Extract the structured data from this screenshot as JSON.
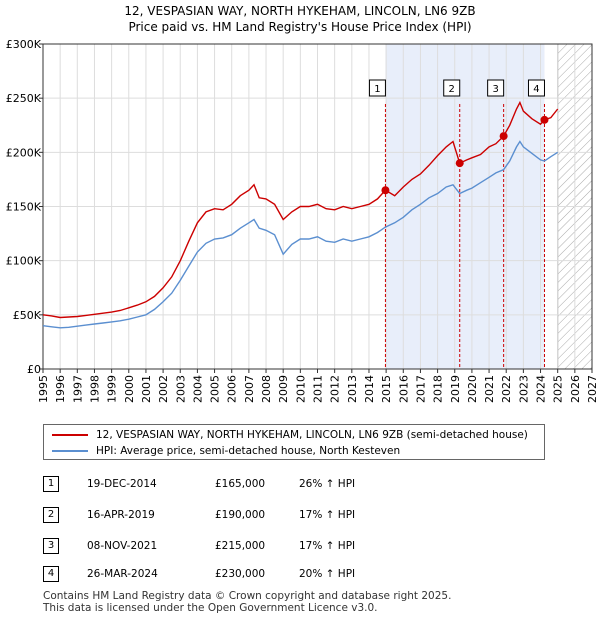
{
  "header": {
    "title_line1": "12, VESPASIAN WAY, NORTH HYKEHAM, LINCOLN, LN6 9ZB",
    "title_line2": "Price paid vs. HM Land Registry's House Price Index (HPI)"
  },
  "colors": {
    "property": "#cc0000",
    "hpi": "#5b8fd0",
    "sale_band": "#e8eefa",
    "grid": "#dddddd",
    "hatch": "#aaaaaa"
  },
  "chart_data": {
    "type": "line",
    "title": "12, VESPASIAN WAY, NORTH HYKEHAM, LINCOLN, LN6 9ZB — Price paid vs. HM Land Registry's House Price Index (HPI)",
    "xlim": [
      1995,
      2027
    ],
    "ylim": [
      0,
      300000
    ],
    "x_ticks": [
      "1995",
      "1996",
      "1997",
      "1998",
      "1999",
      "2000",
      "2001",
      "2002",
      "2003",
      "2004",
      "2005",
      "2006",
      "2007",
      "2008",
      "2009",
      "2010",
      "2011",
      "2012",
      "2013",
      "2014",
      "2015",
      "2016",
      "2017",
      "2018",
      "2019",
      "2020",
      "2021",
      "2022",
      "2023",
      "2024",
      "2025",
      "2026",
      "2027"
    ],
    "y_ticks": [
      {
        "value": 0,
        "label": "£0"
      },
      {
        "value": 50000,
        "label": "£50K"
      },
      {
        "value": 100000,
        "label": "£100K"
      },
      {
        "value": 150000,
        "label": "£150K"
      },
      {
        "value": 200000,
        "label": "£200K"
      },
      {
        "value": 250000,
        "label": "£250K"
      },
      {
        "value": 300000,
        "label": "£300K"
      }
    ],
    "grid": true,
    "forecast_from": 2025.0,
    "sale_band": [
      2014.96,
      2024.23
    ],
    "series": [
      {
        "name": "12, VESPASIAN WAY, NORTH HYKEHAM, LINCOLN, LN6 9ZB (semi-detached house)",
        "color": "#cc0000",
        "points": [
          [
            1995.0,
            50000
          ],
          [
            1995.5,
            49000
          ],
          [
            1996.0,
            47500
          ],
          [
            1996.5,
            48000
          ],
          [
            1997.0,
            48500
          ],
          [
            1997.5,
            49500
          ],
          [
            1998.0,
            50500
          ],
          [
            1998.5,
            51500
          ],
          [
            1999.0,
            52500
          ],
          [
            1999.5,
            54000
          ],
          [
            2000.0,
            56500
          ],
          [
            2000.5,
            59000
          ],
          [
            2001.0,
            62000
          ],
          [
            2001.5,
            67000
          ],
          [
            2002.0,
            75000
          ],
          [
            2002.5,
            85000
          ],
          [
            2003.0,
            100000
          ],
          [
            2003.5,
            118000
          ],
          [
            2004.0,
            135000
          ],
          [
            2004.5,
            145000
          ],
          [
            2005.0,
            148000
          ],
          [
            2005.5,
            147000
          ],
          [
            2006.0,
            152000
          ],
          [
            2006.5,
            160000
          ],
          [
            2007.0,
            165000
          ],
          [
            2007.3,
            170000
          ],
          [
            2007.6,
            158000
          ],
          [
            2008.0,
            157000
          ],
          [
            2008.5,
            152000
          ],
          [
            2009.0,
            138000
          ],
          [
            2009.5,
            145000
          ],
          [
            2010.0,
            150000
          ],
          [
            2010.5,
            150000
          ],
          [
            2011.0,
            152000
          ],
          [
            2011.5,
            148000
          ],
          [
            2012.0,
            147000
          ],
          [
            2012.5,
            150000
          ],
          [
            2013.0,
            148000
          ],
          [
            2013.5,
            150000
          ],
          [
            2014.0,
            152000
          ],
          [
            2014.5,
            157000
          ],
          [
            2014.96,
            165000
          ],
          [
            2015.5,
            160000
          ],
          [
            2016.0,
            168000
          ],
          [
            2016.5,
            175000
          ],
          [
            2017.0,
            180000
          ],
          [
            2017.5,
            188000
          ],
          [
            2018.0,
            197000
          ],
          [
            2018.5,
            205000
          ],
          [
            2018.9,
            210000
          ],
          [
            2019.29,
            190000
          ],
          [
            2019.7,
            193000
          ],
          [
            2020.0,
            195000
          ],
          [
            2020.5,
            198000
          ],
          [
            2021.0,
            205000
          ],
          [
            2021.4,
            208000
          ],
          [
            2021.85,
            215000
          ],
          [
            2022.2,
            225000
          ],
          [
            2022.6,
            240000
          ],
          [
            2022.8,
            246000
          ],
          [
            2023.0,
            238000
          ],
          [
            2023.5,
            231000
          ],
          [
            2024.0,
            226000
          ],
          [
            2024.23,
            230000
          ],
          [
            2024.6,
            232000
          ],
          [
            2025.0,
            240000
          ]
        ]
      },
      {
        "name": "HPI: Average price, semi-detached house, North Kesteven",
        "color": "#5b8fd0",
        "points": [
          [
            1995.0,
            40000
          ],
          [
            1995.5,
            39000
          ],
          [
            1996.0,
            38000
          ],
          [
            1996.5,
            38500
          ],
          [
            1997.0,
            39500
          ],
          [
            1997.5,
            40500
          ],
          [
            1998.0,
            41500
          ],
          [
            1998.5,
            42500
          ],
          [
            1999.0,
            43500
          ],
          [
            1999.5,
            44500
          ],
          [
            2000.0,
            46000
          ],
          [
            2000.5,
            48000
          ],
          [
            2001.0,
            50000
          ],
          [
            2001.5,
            55000
          ],
          [
            2002.0,
            62000
          ],
          [
            2002.5,
            70000
          ],
          [
            2003.0,
            82000
          ],
          [
            2003.5,
            95000
          ],
          [
            2004.0,
            108000
          ],
          [
            2004.5,
            116000
          ],
          [
            2005.0,
            120000
          ],
          [
            2005.5,
            121000
          ],
          [
            2006.0,
            124000
          ],
          [
            2006.5,
            130000
          ],
          [
            2007.0,
            135000
          ],
          [
            2007.3,
            138000
          ],
          [
            2007.6,
            130000
          ],
          [
            2008.0,
            128000
          ],
          [
            2008.5,
            124000
          ],
          [
            2009.0,
            106000
          ],
          [
            2009.5,
            115000
          ],
          [
            2010.0,
            120000
          ],
          [
            2010.5,
            120000
          ],
          [
            2011.0,
            122000
          ],
          [
            2011.5,
            118000
          ],
          [
            2012.0,
            117000
          ],
          [
            2012.5,
            120000
          ],
          [
            2013.0,
            118000
          ],
          [
            2013.5,
            120000
          ],
          [
            2014.0,
            122000
          ],
          [
            2014.5,
            126000
          ],
          [
            2014.96,
            131000
          ],
          [
            2015.5,
            135000
          ],
          [
            2016.0,
            140000
          ],
          [
            2016.5,
            147000
          ],
          [
            2017.0,
            152000
          ],
          [
            2017.5,
            158000
          ],
          [
            2018.0,
            162000
          ],
          [
            2018.5,
            168000
          ],
          [
            2018.9,
            170000
          ],
          [
            2019.29,
            162000
          ],
          [
            2019.7,
            165000
          ],
          [
            2020.0,
            167000
          ],
          [
            2020.5,
            172000
          ],
          [
            2021.0,
            177000
          ],
          [
            2021.4,
            181000
          ],
          [
            2021.85,
            184000
          ],
          [
            2022.2,
            192000
          ],
          [
            2022.6,
            205000
          ],
          [
            2022.8,
            210000
          ],
          [
            2023.0,
            205000
          ],
          [
            2023.5,
            199000
          ],
          [
            2024.0,
            193000
          ],
          [
            2024.23,
            192000
          ],
          [
            2024.6,
            196000
          ],
          [
            2025.0,
            200000
          ]
        ]
      }
    ],
    "sales": [
      {
        "n": "1",
        "x": 2014.96,
        "y": 165000
      },
      {
        "n": "2",
        "x": 2019.29,
        "y": 190000
      },
      {
        "n": "3",
        "x": 2021.85,
        "y": 215000
      },
      {
        "n": "4",
        "x": 2024.23,
        "y": 230000
      }
    ]
  },
  "legend": {
    "property_label": "12, VESPASIAN WAY, NORTH HYKEHAM, LINCOLN, LN6 9ZB (semi-detached house)",
    "hpi_label": "HPI: Average price, semi-detached house, North Kesteven"
  },
  "sales_table": [
    {
      "n": "1",
      "date": "19-DEC-2014",
      "price": "£165,000",
      "hpi": "26% ↑ HPI"
    },
    {
      "n": "2",
      "date": "16-APR-2019",
      "price": "£190,000",
      "hpi": "17% ↑ HPI"
    },
    {
      "n": "3",
      "date": "08-NOV-2021",
      "price": "£215,000",
      "hpi": "17% ↑ HPI"
    },
    {
      "n": "4",
      "date": "26-MAR-2024",
      "price": "£230,000",
      "hpi": "20% ↑ HPI"
    }
  ],
  "footer": {
    "line1": "Contains HM Land Registry data © Crown copyright and database right 2025.",
    "line2": "This data is licensed under the Open Government Licence v3.0."
  }
}
